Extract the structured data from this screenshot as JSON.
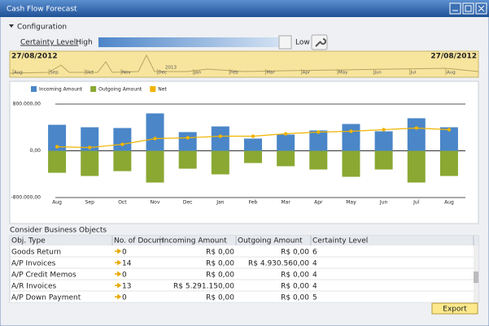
{
  "window": {
    "title": "Cash Flow Forecast"
  },
  "config": {
    "toggle": "Configuration",
    "certainty_label": "Certainty Level:",
    "high": "High",
    "low": "Low"
  },
  "timeline": {
    "start": "27/08/2012",
    "end": "27/08/2012",
    "year": "2013",
    "months": [
      "Aug",
      "Sep",
      "Oct",
      "Nov",
      "Dec",
      "Jan",
      "Feb",
      "Mar",
      "Apr",
      "May",
      "Jun",
      "Jul",
      "Aug"
    ]
  },
  "chart_data": {
    "type": "bar",
    "categories": [
      "Aug",
      "Sep",
      "Oct",
      "Nov",
      "Dec",
      "Jan",
      "Feb",
      "Mar",
      "Apr",
      "May",
      "Jun",
      "Jul",
      "Aug"
    ],
    "series": [
      {
        "name": "Incoming Amount",
        "color": "#4a86c8",
        "values": [
          445000,
          403000,
          390000,
          640000,
          320000,
          417000,
          209000,
          278000,
          348000,
          459000,
          334000,
          557000,
          403000
        ]
      },
      {
        "name": "Outgoing Amount",
        "color": "#8aa832",
        "values": [
          -376000,
          -431000,
          -348000,
          -543000,
          -306000,
          -403000,
          -209000,
          -264000,
          -320000,
          -445000,
          -320000,
          -543000,
          -431000
        ]
      },
      {
        "name": "Net",
        "type": "line",
        "color": "#f0b400",
        "values": [
          70000,
          56000,
          111000,
          209000,
          223000,
          250000,
          250000,
          292000,
          320000,
          334000,
          362000,
          390000,
          362000
        ]
      }
    ],
    "ylim": [
      -800000,
      800000
    ],
    "yticks": [
      {
        "value": -800000,
        "label": "-800.000,00"
      },
      {
        "value": 0,
        "label": "0,00"
      },
      {
        "value": 800000,
        "label": "800.000,00"
      }
    ],
    "grid": true,
    "legend": "top-left"
  },
  "table": {
    "title": "Consider Business Objects",
    "columns": [
      "Obj. Type",
      "No. of Docum",
      "Incoming Amount",
      "Outgoing Amount",
      "Certainty Level"
    ],
    "rows": [
      [
        "Goods Return",
        "0",
        "R$ 0,00",
        "R$ 0,00",
        "6"
      ],
      [
        "A/P Invoices",
        "14",
        "R$ 0,00",
        "R$ 4.930.560,00",
        "4"
      ],
      [
        "A/P Credit Memos",
        "0",
        "R$ 0,00",
        "R$ 0,00",
        "4"
      ],
      [
        "A/R Invoices",
        "13",
        "R$ 5.291.150,00",
        "R$ 0,00",
        "4"
      ],
      [
        "A/P Down Payment",
        "0",
        "R$ 0,00",
        "R$ 0,00",
        "5"
      ]
    ]
  },
  "export": "Export"
}
